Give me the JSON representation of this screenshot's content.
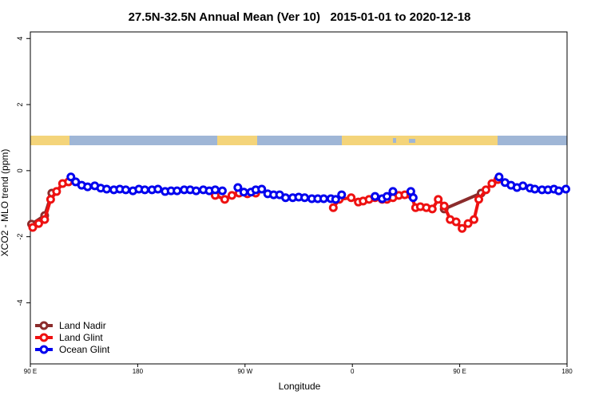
{
  "chart_data": {
    "type": "line",
    "title": "27.5N-32.5N Annual Mean (Ver 10)   2015-01-01 to 2020-12-18",
    "x_label": "Longitude",
    "y_label": "XCO2 - MLO trend (ppm)",
    "xlim": [
      90,
      540
    ],
    "xticks": [
      {
        "value": 90,
        "label": "90 E"
      },
      180,
      {
        "value": 270,
        "label": "90 W"
      },
      {
        "value": 360,
        "label": "0"
      },
      {
        "value": 450,
        "label": "90 E"
      },
      {
        "value": 540,
        "label": "180"
      }
    ],
    "ylim": [
      -5.85,
      4.2
    ],
    "yticks": [
      -4,
      -2,
      0,
      2,
      4
    ],
    "legend": "bottom-left",
    "series": [
      {
        "name": "Land Nadir",
        "color": "#8b2c2c",
        "x": [
          91,
          102,
          108,
          null,
          437,
          468
        ],
        "values": [
          -1.62,
          -1.36,
          -0.68,
          null,
          -1.16,
          -0.68
        ]
      },
      {
        "name": "Land Glint",
        "color": "#ee1111",
        "x": [
          92,
          97,
          102,
          107,
          112,
          117,
          122,
          null,
          245,
          253,
          259,
          265,
          272,
          279,
          null,
          344,
          349,
          359,
          365,
          369,
          374,
          379,
          385,
          389,
          394,
          399,
          404,
          409,
          413,
          417,
          422,
          427,
          432,
          437,
          442,
          447,
          452,
          457,
          462,
          466,
          472,
          477,
          482
        ],
        "values": [
          -1.72,
          -1.6,
          -1.48,
          -0.87,
          -0.63,
          -0.39,
          -0.34,
          null,
          -0.75,
          -0.87,
          -0.75,
          -0.68,
          -0.7,
          -0.68,
          null,
          -1.12,
          -0.87,
          -0.82,
          -0.95,
          -0.92,
          -0.87,
          -0.82,
          -0.87,
          -0.87,
          -0.82,
          -0.75,
          -0.73,
          -0.73,
          -1.12,
          -1.09,
          -1.12,
          -1.16,
          -0.87,
          -1.07,
          -1.48,
          -1.55,
          -1.75,
          -1.6,
          -1.48,
          -0.87,
          -0.58,
          -0.39,
          -0.27
        ]
      },
      {
        "name": "Ocean Glint",
        "color": "#0000ee",
        "x": [
          124,
          128,
          133,
          138,
          144,
          149,
          154,
          160,
          165,
          170,
          176,
          181,
          186,
          192,
          197,
          203,
          208,
          213,
          219,
          224,
          229,
          235,
          240,
          245,
          251,
          null,
          264,
          269,
          275,
          279,
          284,
          289,
          294,
          299,
          304,
          310,
          315,
          320,
          326,
          331,
          336,
          342,
          346,
          351,
          null,
          379,
          385,
          389,
          394,
          null,
          409,
          411,
          null,
          483,
          488,
          493,
          498,
          503,
          509,
          513,
          519,
          524,
          529,
          533,
          539
        ],
        "values": [
          -0.19,
          -0.34,
          -0.44,
          -0.49,
          -0.46,
          -0.53,
          -0.56,
          -0.58,
          -0.56,
          -0.58,
          -0.61,
          -0.56,
          -0.58,
          -0.58,
          -0.56,
          -0.63,
          -0.61,
          -0.61,
          -0.58,
          -0.58,
          -0.61,
          -0.58,
          -0.61,
          -0.58,
          -0.61,
          null,
          -0.51,
          -0.65,
          -0.65,
          -0.58,
          -0.56,
          -0.7,
          -0.73,
          -0.73,
          -0.82,
          -0.82,
          -0.8,
          -0.82,
          -0.85,
          -0.85,
          -0.85,
          -0.85,
          -0.87,
          -0.73,
          null,
          -0.78,
          -0.85,
          -0.78,
          -0.63,
          null,
          -0.63,
          -0.82,
          null,
          -0.19,
          -0.36,
          -0.44,
          -0.51,
          -0.46,
          -0.53,
          -0.56,
          -0.58,
          -0.58,
          -0.56,
          -0.61,
          -0.56
        ]
      }
    ]
  }
}
